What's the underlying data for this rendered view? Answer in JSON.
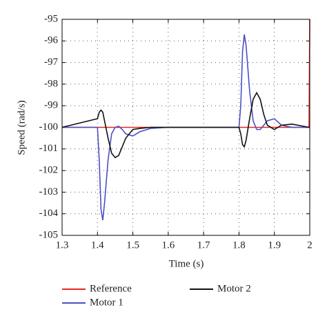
{
  "chart_data": {
    "type": "line",
    "x_label": "Time (s)",
    "y_label": "Speed (rad/s)",
    "x": [
      1.3,
      1.4,
      1.405,
      1.41,
      1.415,
      1.42,
      1.43,
      1.44,
      1.45,
      1.46,
      1.47,
      1.48,
      1.5,
      1.52,
      1.55,
      1.6,
      1.7,
      1.8,
      1.805,
      1.81,
      1.815,
      1.82,
      1.83,
      1.84,
      1.85,
      1.86,
      1.87,
      1.88,
      1.9,
      1.92,
      1.95,
      1.998,
      2.0
    ],
    "series": [
      {
        "name": "Reference",
        "color": "#e8251e",
        "values": [
          -100,
          -100,
          -100,
          -100,
          -100,
          -100,
          -100,
          -100,
          -100,
          -100,
          -100,
          -100,
          -100,
          -100,
          -100,
          -100,
          -100,
          -100,
          -100,
          -100,
          -100,
          -100,
          -100,
          -100,
          -100,
          -100,
          -100,
          -100,
          -100,
          -100,
          -100,
          -100,
          -95
        ]
      },
      {
        "name": "Motor 1",
        "color": "#4a4fc4",
        "values": [
          -100,
          -100,
          -101.5,
          -103.8,
          -104.3,
          -103.5,
          -101.5,
          -100.3,
          -100.0,
          -99.95,
          -100.1,
          -100.3,
          -100.4,
          -100.2,
          -100.05,
          -100.0,
          -100,
          -100,
          -99.0,
          -96.5,
          -95.7,
          -96.2,
          -98.3,
          -99.7,
          -100.1,
          -100.1,
          -99.9,
          -99.7,
          -99.6,
          -99.9,
          -100.0,
          -100.0,
          -100.0
        ]
      },
      {
        "name": "Motor 2",
        "color": "#111111",
        "values": [
          -100,
          -99.6,
          -99.3,
          -99.2,
          -99.3,
          -99.7,
          -100.5,
          -101.2,
          -101.4,
          -101.3,
          -100.9,
          -100.5,
          -100.1,
          -100.05,
          -100,
          -100,
          -100,
          -100,
          -100.3,
          -100.8,
          -100.9,
          -100.6,
          -99.6,
          -98.7,
          -98.4,
          -98.7,
          -99.4,
          -99.9,
          -100.1,
          -99.9,
          -99.85,
          -100,
          -100
        ]
      }
    ],
    "xlim": [
      1.3,
      2
    ],
    "xticks": [
      1.3,
      1.4,
      1.5,
      1.6,
      1.7,
      1.8,
      1.9,
      2
    ],
    "ylim": [
      -105,
      -95
    ],
    "yticks": [
      -105,
      -104,
      -103,
      -102,
      -101,
      -100,
      -99,
      -98,
      -97,
      -96,
      -95
    ],
    "grid": true
  }
}
